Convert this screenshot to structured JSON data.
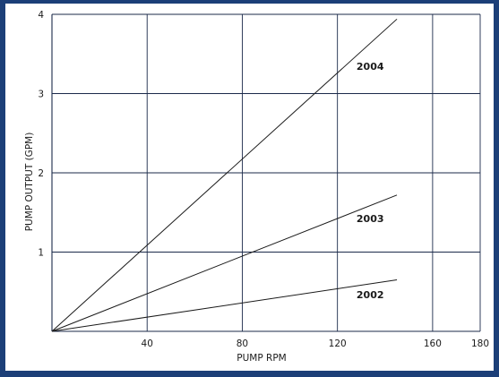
{
  "chart_data": {
    "type": "line",
    "title": "",
    "xlabel": "PUMP RPM",
    "ylabel": "PUMP OUTPUT (GPM)",
    "xlim": [
      0,
      180
    ],
    "ylim": [
      0,
      4
    ],
    "x_ticks": [
      "40",
      "80",
      "120",
      "160",
      "180"
    ],
    "y_ticks": [
      "1",
      "2",
      "3",
      "4"
    ],
    "grid": true,
    "legend": "none",
    "series": [
      {
        "name": "2004",
        "x": [
          0,
          145
        ],
        "y": [
          0,
          3.94
        ]
      },
      {
        "name": "2003",
        "x": [
          0,
          145
        ],
        "y": [
          0,
          1.72
        ]
      },
      {
        "name": "2002",
        "x": [
          0,
          145
        ],
        "y": [
          0,
          0.65
        ]
      }
    ],
    "series_label_positions": [
      {
        "series": "2004",
        "x": 128,
        "y": 3.3
      },
      {
        "series": "2003",
        "x": 128,
        "y": 1.38
      },
      {
        "series": "2002",
        "x": 128,
        "y": 0.42
      }
    ]
  }
}
